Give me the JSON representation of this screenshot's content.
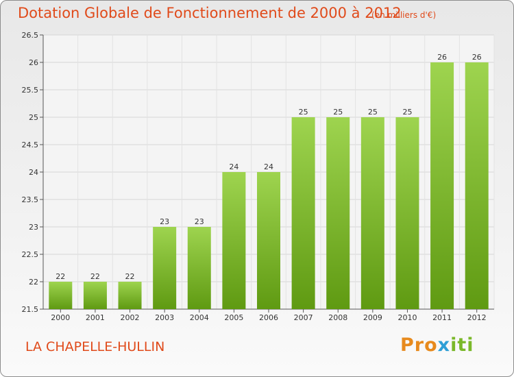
{
  "header": {
    "title": "Dotation Globale de Fonctionnement de 2000 à 2012",
    "subtitle": "(en milliers d'€)"
  },
  "footer": {
    "commune": "LA CHAPELLE-HULLIN",
    "logo_p1": "Pro",
    "logo_p2": "x",
    "logo_p3": "iti"
  },
  "colors": {
    "title": "#e04a1a",
    "bar_top": "#9ed44f",
    "bar_bottom": "#5f9a12"
  },
  "chart_data": {
    "type": "bar",
    "title": "Dotation Globale de Fonctionnement de 2000 à 2012",
    "subtitle": "(en milliers d'€)",
    "xlabel": "",
    "ylabel": "",
    "categories": [
      "2000",
      "2001",
      "2002",
      "2003",
      "2004",
      "2005",
      "2006",
      "2007",
      "2008",
      "2009",
      "2010",
      "2011",
      "2012"
    ],
    "values": [
      22,
      22,
      22,
      23,
      23,
      24,
      24,
      25,
      25,
      25,
      25,
      26,
      26
    ],
    "ylim": [
      21.5,
      26.5
    ],
    "yticks": [
      "21.5",
      "22",
      "22.5",
      "23",
      "23.5",
      "24",
      "24.5",
      "25",
      "25.5",
      "26",
      "26.5"
    ],
    "grid": true
  }
}
